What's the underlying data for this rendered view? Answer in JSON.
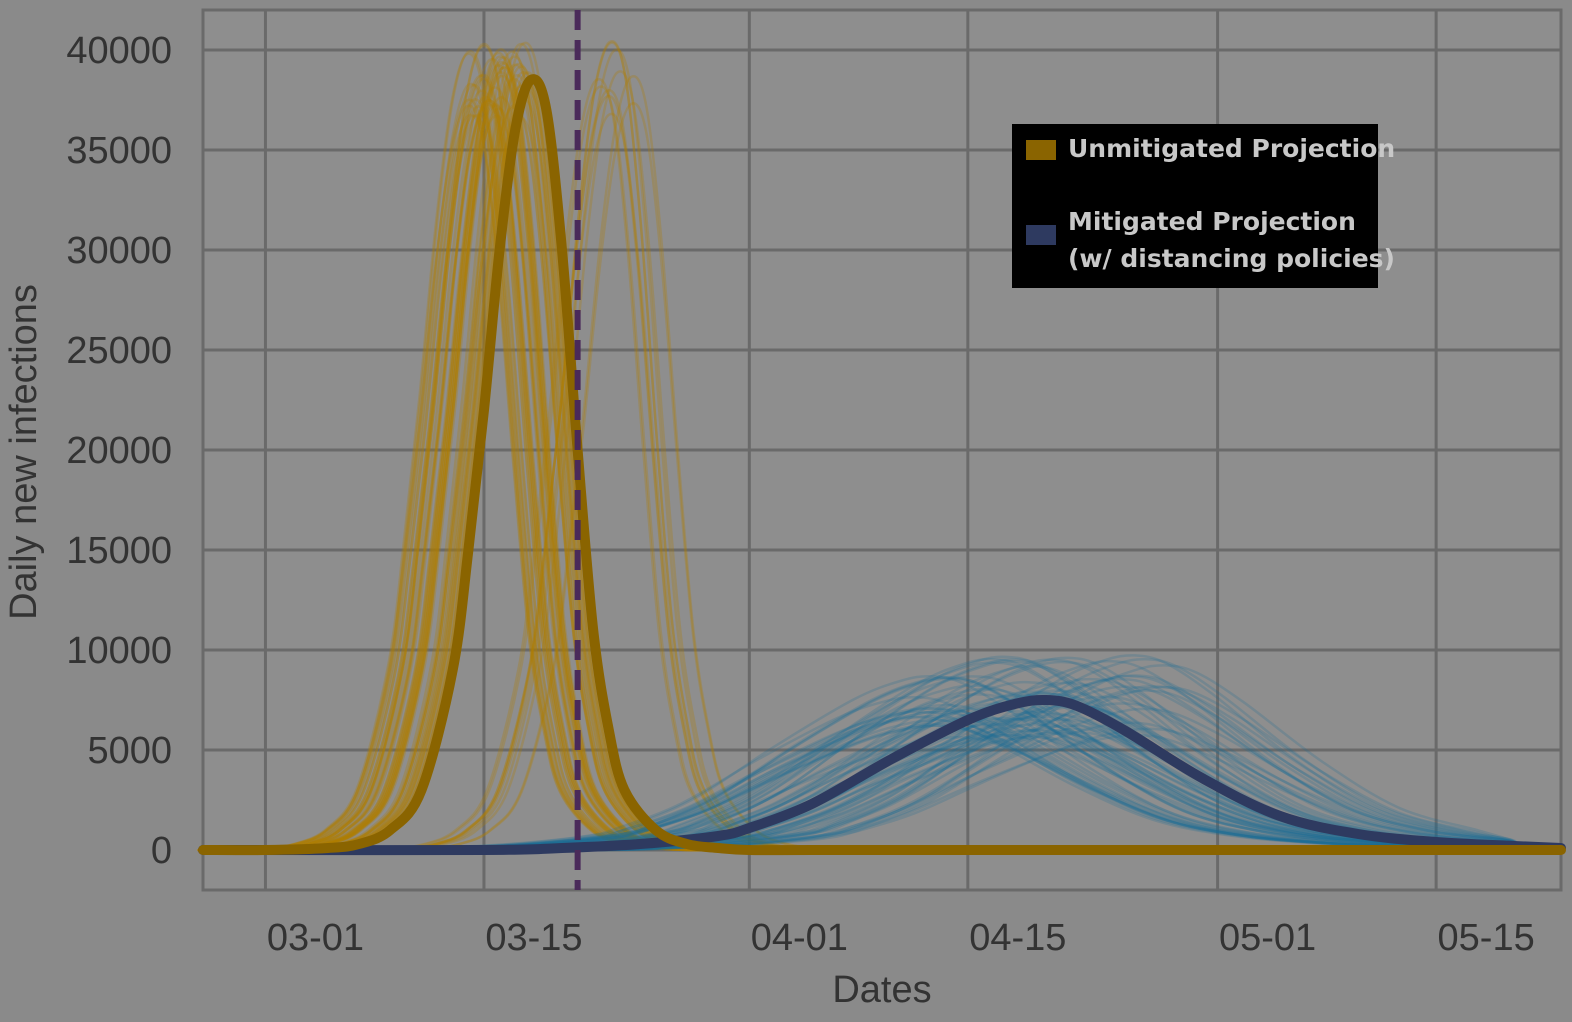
{
  "chart_data": {
    "type": "line",
    "xlabel": "Dates",
    "ylabel": "Daily new infections",
    "xlim": [
      "02-26",
      "05-23"
    ],
    "ylim": [
      -2000,
      42000
    ],
    "x_ticks": [
      "03-01",
      "03-15",
      "04-01",
      "04-15",
      "05-01",
      "05-15"
    ],
    "y_ticks": [
      0,
      5000,
      10000,
      15000,
      20000,
      25000,
      30000,
      35000,
      40000
    ],
    "grid": true,
    "reference_line": {
      "x": "03-21",
      "style": "dashed",
      "color": "#4a2a5a"
    },
    "legend": {
      "placement": "top-right",
      "entries": [
        {
          "label": "Unmitigated Projection",
          "color": "#8a6400"
        },
        {
          "label": "Mitigated Projection",
          "label_line2": "(w/ distancing policies)",
          "color": "#2e3a60"
        }
      ]
    },
    "series": [
      {
        "name": "Unmitigated Projection",
        "color": "#8a6400",
        "ensemble_color": "#b07e00",
        "x": [
          "02-26",
          "03-01",
          "03-05",
          "03-07",
          "03-09",
          "03-11",
          "03-13",
          "03-14",
          "03-15",
          "03-16",
          "03-17",
          "03-18",
          "03-19",
          "03-20",
          "03-21",
          "03-22",
          "03-23",
          "03-24",
          "03-26",
          "03-28",
          "03-30",
          "04-01",
          "04-05",
          "04-15",
          "05-01",
          "05-15",
          "05-23"
        ],
        "y": [
          0,
          0,
          100,
          300,
          1000,
          3000,
          9000,
          15000,
          22000,
          30000,
          36000,
          38500,
          37000,
          30000,
          20000,
          11000,
          6000,
          3000,
          1000,
          300,
          100,
          0,
          0,
          0,
          0,
          0,
          0
        ]
      },
      {
        "name": "Mitigated Projection",
        "color": "#2e3a60",
        "ensemble_color": "#1c6e95",
        "x": [
          "02-26",
          "03-15",
          "03-20",
          "03-25",
          "03-30",
          "04-01",
          "04-05",
          "04-10",
          "04-15",
          "04-18",
          "04-20",
          "04-22",
          "04-25",
          "04-30",
          "05-05",
          "05-10",
          "05-15",
          "05-20",
          "05-23"
        ],
        "y": [
          0,
          0,
          100,
          300,
          700,
          1100,
          2300,
          4500,
          6500,
          7300,
          7500,
          7200,
          6000,
          3600,
          1700,
          800,
          400,
          200,
          100
        ]
      }
    ]
  }
}
